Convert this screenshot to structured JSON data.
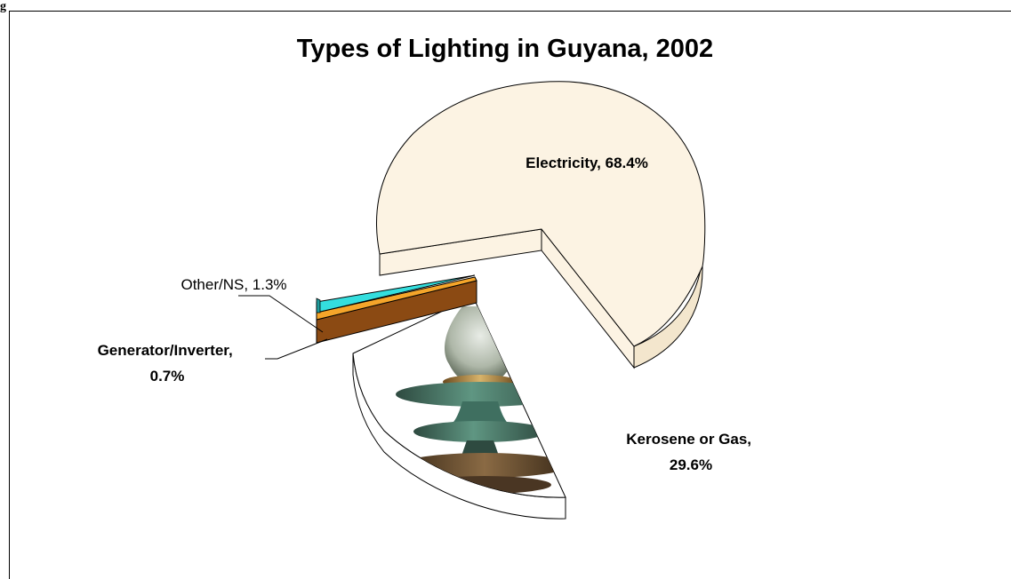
{
  "figure_label": "g",
  "chart_data": {
    "type": "pie",
    "title": "Types of Lighting in Guyana, 2002",
    "slices": [
      {
        "label": "Electricity",
        "value": 68.4,
        "display": "Electricity, 68.4%",
        "color": "#fcf3e3",
        "bold": true
      },
      {
        "label": "Kerosene or Gas",
        "value": 29.6,
        "display_lines": [
          "Kerosene or Gas,",
          "29.6%"
        ],
        "color": "#ffffff",
        "bold": true
      },
      {
        "label": "Generator/Inverter",
        "value": 0.7,
        "display_lines": [
          "Generator/Inverter,",
          "0.7%"
        ],
        "color": "#f5a52a",
        "bold": true
      },
      {
        "label": "Other/NS",
        "value": 1.3,
        "display": "Other/NS, 1.3%",
        "color": "#34dede",
        "bold": false
      }
    ],
    "legend": "none",
    "style": "3d-exploded"
  }
}
